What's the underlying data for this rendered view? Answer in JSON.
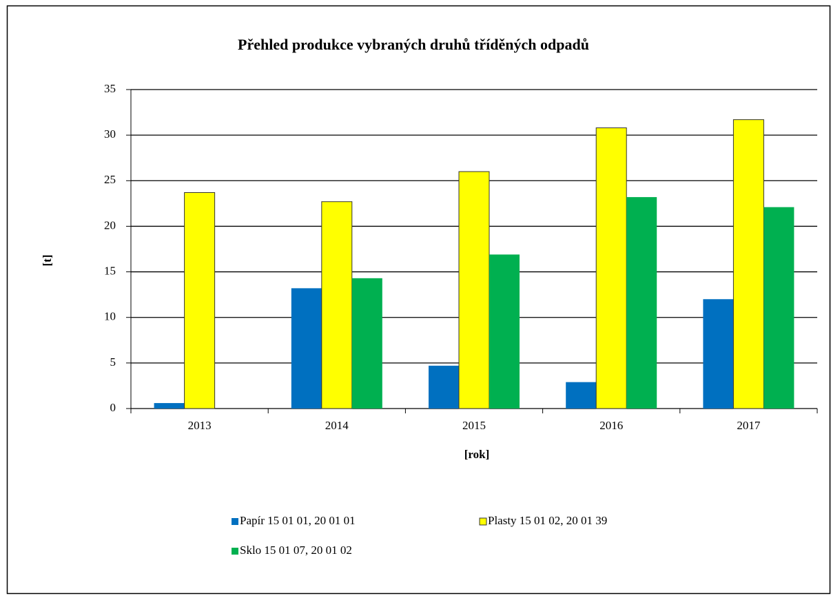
{
  "chart_data": {
    "type": "bar",
    "title": "Přehled produkce vybraných druhů tříděných odpadů",
    "y_label": "[t]",
    "x_label": "[rok]",
    "categories": [
      "2013",
      "2014",
      "2015",
      "2016",
      "2017"
    ],
    "series": [
      {
        "name": "Papír 15 01 01, 20 01 01",
        "color": "#0070c0",
        "values": [
          0.6,
          13.2,
          4.7,
          2.9,
          12.0
        ]
      },
      {
        "name": "Plasty 15 01 02, 20 01 39",
        "color": "#ffff00",
        "values": [
          23.7,
          22.7,
          26.0,
          30.8,
          31.7
        ]
      },
      {
        "name": "Sklo 15 01 07, 20 01 02",
        "color": "#00b050",
        "values": [
          null,
          14.3,
          16.9,
          23.2,
          22.1
        ]
      }
    ],
    "ylim": [
      0,
      35
    ],
    "yticks": [
      0,
      5,
      10,
      15,
      20,
      25,
      30,
      35
    ],
    "grid": true,
    "legend": "bottom"
  }
}
